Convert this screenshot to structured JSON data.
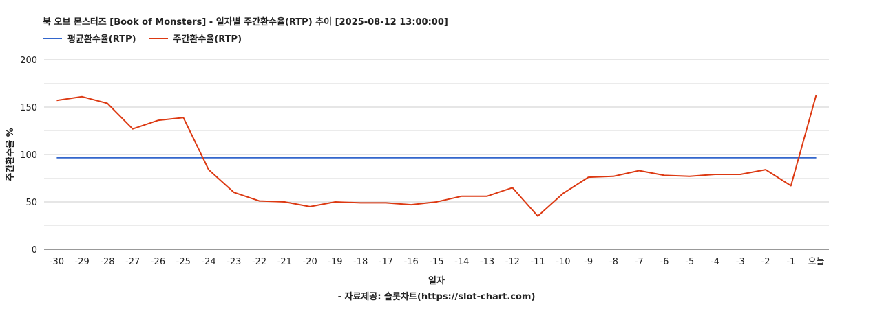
{
  "title": "북 오브 몬스터즈 [Book of Monsters] - 일자별 주간환수율(RTP) 추이 [2025-08-12 13:00:00]",
  "source_note": "- 자료제공: 슬롯차트(https://slot-chart.com)",
  "chart_data": {
    "type": "line",
    "xlabel": "일자",
    "ylabel": "주간환수율 %",
    "ylim": [
      0,
      200
    ],
    "y_ticks": [
      0,
      50,
      100,
      150,
      200
    ],
    "grid": true,
    "legend_position": "top-left",
    "categories": [
      "-30",
      "-29",
      "-28",
      "-27",
      "-26",
      "-25",
      "-24",
      "-23",
      "-22",
      "-21",
      "-20",
      "-19",
      "-18",
      "-17",
      "-16",
      "-15",
      "-14",
      "-13",
      "-12",
      "-11",
      "-10",
      "-9",
      "-8",
      "-7",
      "-6",
      "-5",
      "-4",
      "-3",
      "-2",
      "-1",
      "오늘"
    ],
    "series": [
      {
        "name": "평균환수율(RTP)",
        "color": "#3366cc",
        "values": [
          96.5,
          96.5,
          96.5,
          96.5,
          96.5,
          96.5,
          96.5,
          96.5,
          96.5,
          96.5,
          96.5,
          96.5,
          96.5,
          96.5,
          96.5,
          96.5,
          96.5,
          96.5,
          96.5,
          96.5,
          96.5,
          96.5,
          96.5,
          96.5,
          96.5,
          96.5,
          96.5,
          96.5,
          96.5,
          96.5,
          96.5
        ]
      },
      {
        "name": "주간환수율(RTP)",
        "color": "#dc3912",
        "values": [
          157,
          161,
          154,
          127,
          136,
          139,
          84,
          60,
          51,
          50,
          45,
          50,
          49,
          49,
          47,
          50,
          56,
          56,
          65,
          35,
          59,
          76,
          77,
          83,
          78,
          77,
          79,
          79,
          84,
          67,
          163
        ]
      }
    ]
  }
}
